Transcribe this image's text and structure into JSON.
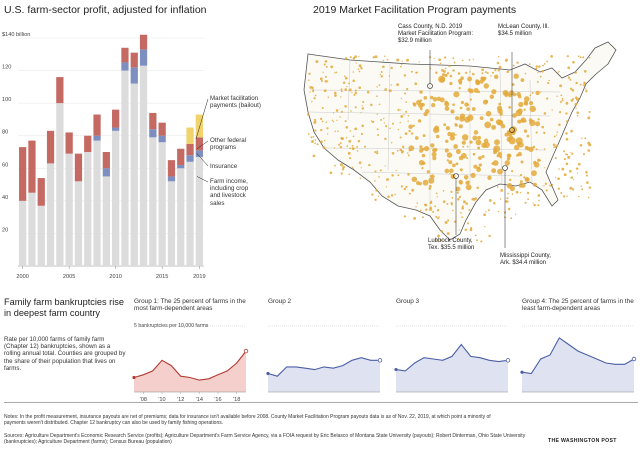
{
  "main_chart": {
    "title": "U.S. farm-sector profit, adjusted for inflation",
    "y_ticks": [
      "$140 billion",
      "120",
      "100",
      "80",
      "60",
      "40",
      "20"
    ],
    "x_ticks": [
      "2000",
      "2005",
      "2010",
      "2015",
      "2019"
    ]
  },
  "legend": {
    "market_facilitation": "Market facilitation payments (bailout)",
    "other_federal": "Other federal programs",
    "insurance": "Insurance",
    "farm_income": "Farm income, including crop and livestock sales"
  },
  "map": {
    "title": "2019 Market Facilitation Program payments",
    "cass": "Cass County, N.D. 2019 Market Facilitation Program: $32.9 million",
    "mclean": "McLean County, Ill. $34.5 million",
    "lubbock": "Lubbock County, Tex. $35.5 million",
    "mississippi": "Mississippi County, Ark. $34.4 million"
  },
  "bankruptcy": {
    "title": "Family farm bankruptcies rise in deepest farm country",
    "description": "Rate per 10,000 farms of family farm (Chapter 12) bankruptcies, shown as a rolling annual total. Counties are grouped by the share of their population that lives on farms.",
    "y_label": "5 bankruptcies per 10,000 farms",
    "x_ticks": [
      "'08",
      "'10",
      "'12",
      "'14",
      "'16",
      "'18"
    ],
    "groups": [
      "Group 1:  The 25 percent of farms in the most farm-dependent areas",
      "Group 2",
      "Group 3",
      "Group 4:  The 25 percent of farms in the least farm-dependent areas"
    ]
  },
  "footer": {
    "notes": "Notes: In the profit measurement, insurance payouts are net of premiums; data for insurance isn't available before 2008. County Market Facilitation Program payouts data is as of Nov. 22, 2019, at which point a minority of payments weren't distributed. Chapter 12 bankruptcy can also be used by family fishing operations.",
    "sources": "Sources: Agriculture Department's Economic Research Service (profits); Agriculture Department's Farm Service Agency, via a FOIA request by Eric Belasco of Montana State University (payouts); Robert Dinterman, Ohio State University (bankruptcies); Agriculture Department (farms); Census Bureau (population)",
    "brand": "THE WASHINGTON POST"
  },
  "colors": {
    "farm_income": "#dcdcdc",
    "other_federal": "#c46a63",
    "insurance": "#7d8fc0",
    "market_facilitation": "#f2d36b",
    "line": "#4a5fa6",
    "line_fill": "#dfe3f1",
    "g1_line": "#b23a32",
    "g1_fill": "#f5cfcb",
    "dot": "#e3a93a"
  },
  "chart_data": [
    {
      "type": "bar",
      "title": "U.S. farm-sector profit, adjusted for inflation",
      "ylabel": "$ billion",
      "ylim": [
        0,
        140
      ],
      "categories": [
        "2000",
        "2001",
        "2002",
        "2003",
        "2004",
        "2005",
        "2006",
        "2007",
        "2008",
        "2009",
        "2010",
        "2011",
        "2012",
        "2013",
        "2014",
        "2015",
        "2016",
        "2017",
        "2018",
        "2019"
      ],
      "series": [
        {
          "name": "Farm income, including crop and livestock sales",
          "values": [
            40,
            45,
            37,
            63,
            100,
            69,
            52,
            70,
            77,
            55,
            83,
            120,
            112,
            123,
            79,
            76,
            52,
            60,
            64,
            67
          ]
        },
        {
          "name": "Insurance",
          "values": [
            0,
            0,
            0,
            0,
            0,
            0,
            0,
            0,
            3,
            5,
            2,
            5,
            10,
            10,
            5,
            4,
            3,
            2,
            4,
            4
          ]
        },
        {
          "name": "Other federal programs",
          "values": [
            33,
            32,
            17,
            20,
            16,
            13,
            17,
            10,
            13,
            10,
            11,
            9,
            9,
            9,
            10,
            8,
            10,
            10,
            7,
            8
          ]
        },
        {
          "name": "Market facilitation payments (bailout)",
          "values": [
            0,
            0,
            0,
            0,
            0,
            0,
            0,
            0,
            0,
            0,
            0,
            0,
            0,
            0,
            0,
            0,
            0,
            0,
            10,
            14
          ]
        }
      ]
    },
    {
      "type": "line",
      "title": "Group 1",
      "x": [
        2007,
        2008,
        2009,
        2010,
        2011,
        2012,
        2013,
        2014,
        2015,
        2016,
        2017,
        2018,
        2019
      ],
      "values": [
        1.1,
        1.3,
        1.6,
        2.4,
        2.0,
        1.2,
        1.1,
        0.9,
        1.0,
        1.3,
        1.6,
        2.2,
        3.1
      ]
    },
    {
      "type": "line",
      "title": "Group 2",
      "x": [
        2007,
        2008,
        2009,
        2010,
        2011,
        2012,
        2013,
        2014,
        2015,
        2016,
        2017,
        2018,
        2019
      ],
      "values": [
        1.4,
        1.2,
        1.9,
        1.9,
        1.8,
        1.7,
        1.9,
        1.8,
        2.0,
        2.4,
        2.6,
        2.4,
        2.4
      ]
    },
    {
      "type": "line",
      "title": "Group 3",
      "x": [
        2007,
        2008,
        2009,
        2010,
        2011,
        2012,
        2013,
        2014,
        2015,
        2016,
        2017,
        2018,
        2019
      ],
      "values": [
        1.7,
        1.6,
        2.2,
        2.6,
        2.5,
        2.4,
        2.7,
        3.6,
        2.7,
        2.6,
        2.4,
        2.3,
        2.4
      ]
    },
    {
      "type": "line",
      "title": "Group 4",
      "x": [
        2007,
        2008,
        2009,
        2010,
        2011,
        2012,
        2013,
        2014,
        2015,
        2016,
        2017,
        2018,
        2019
      ],
      "values": [
        1.5,
        1.4,
        2.5,
        2.8,
        4.1,
        3.6,
        3.1,
        2.8,
        2.5,
        2.2,
        2.1,
        2.1,
        2.5
      ]
    }
  ]
}
